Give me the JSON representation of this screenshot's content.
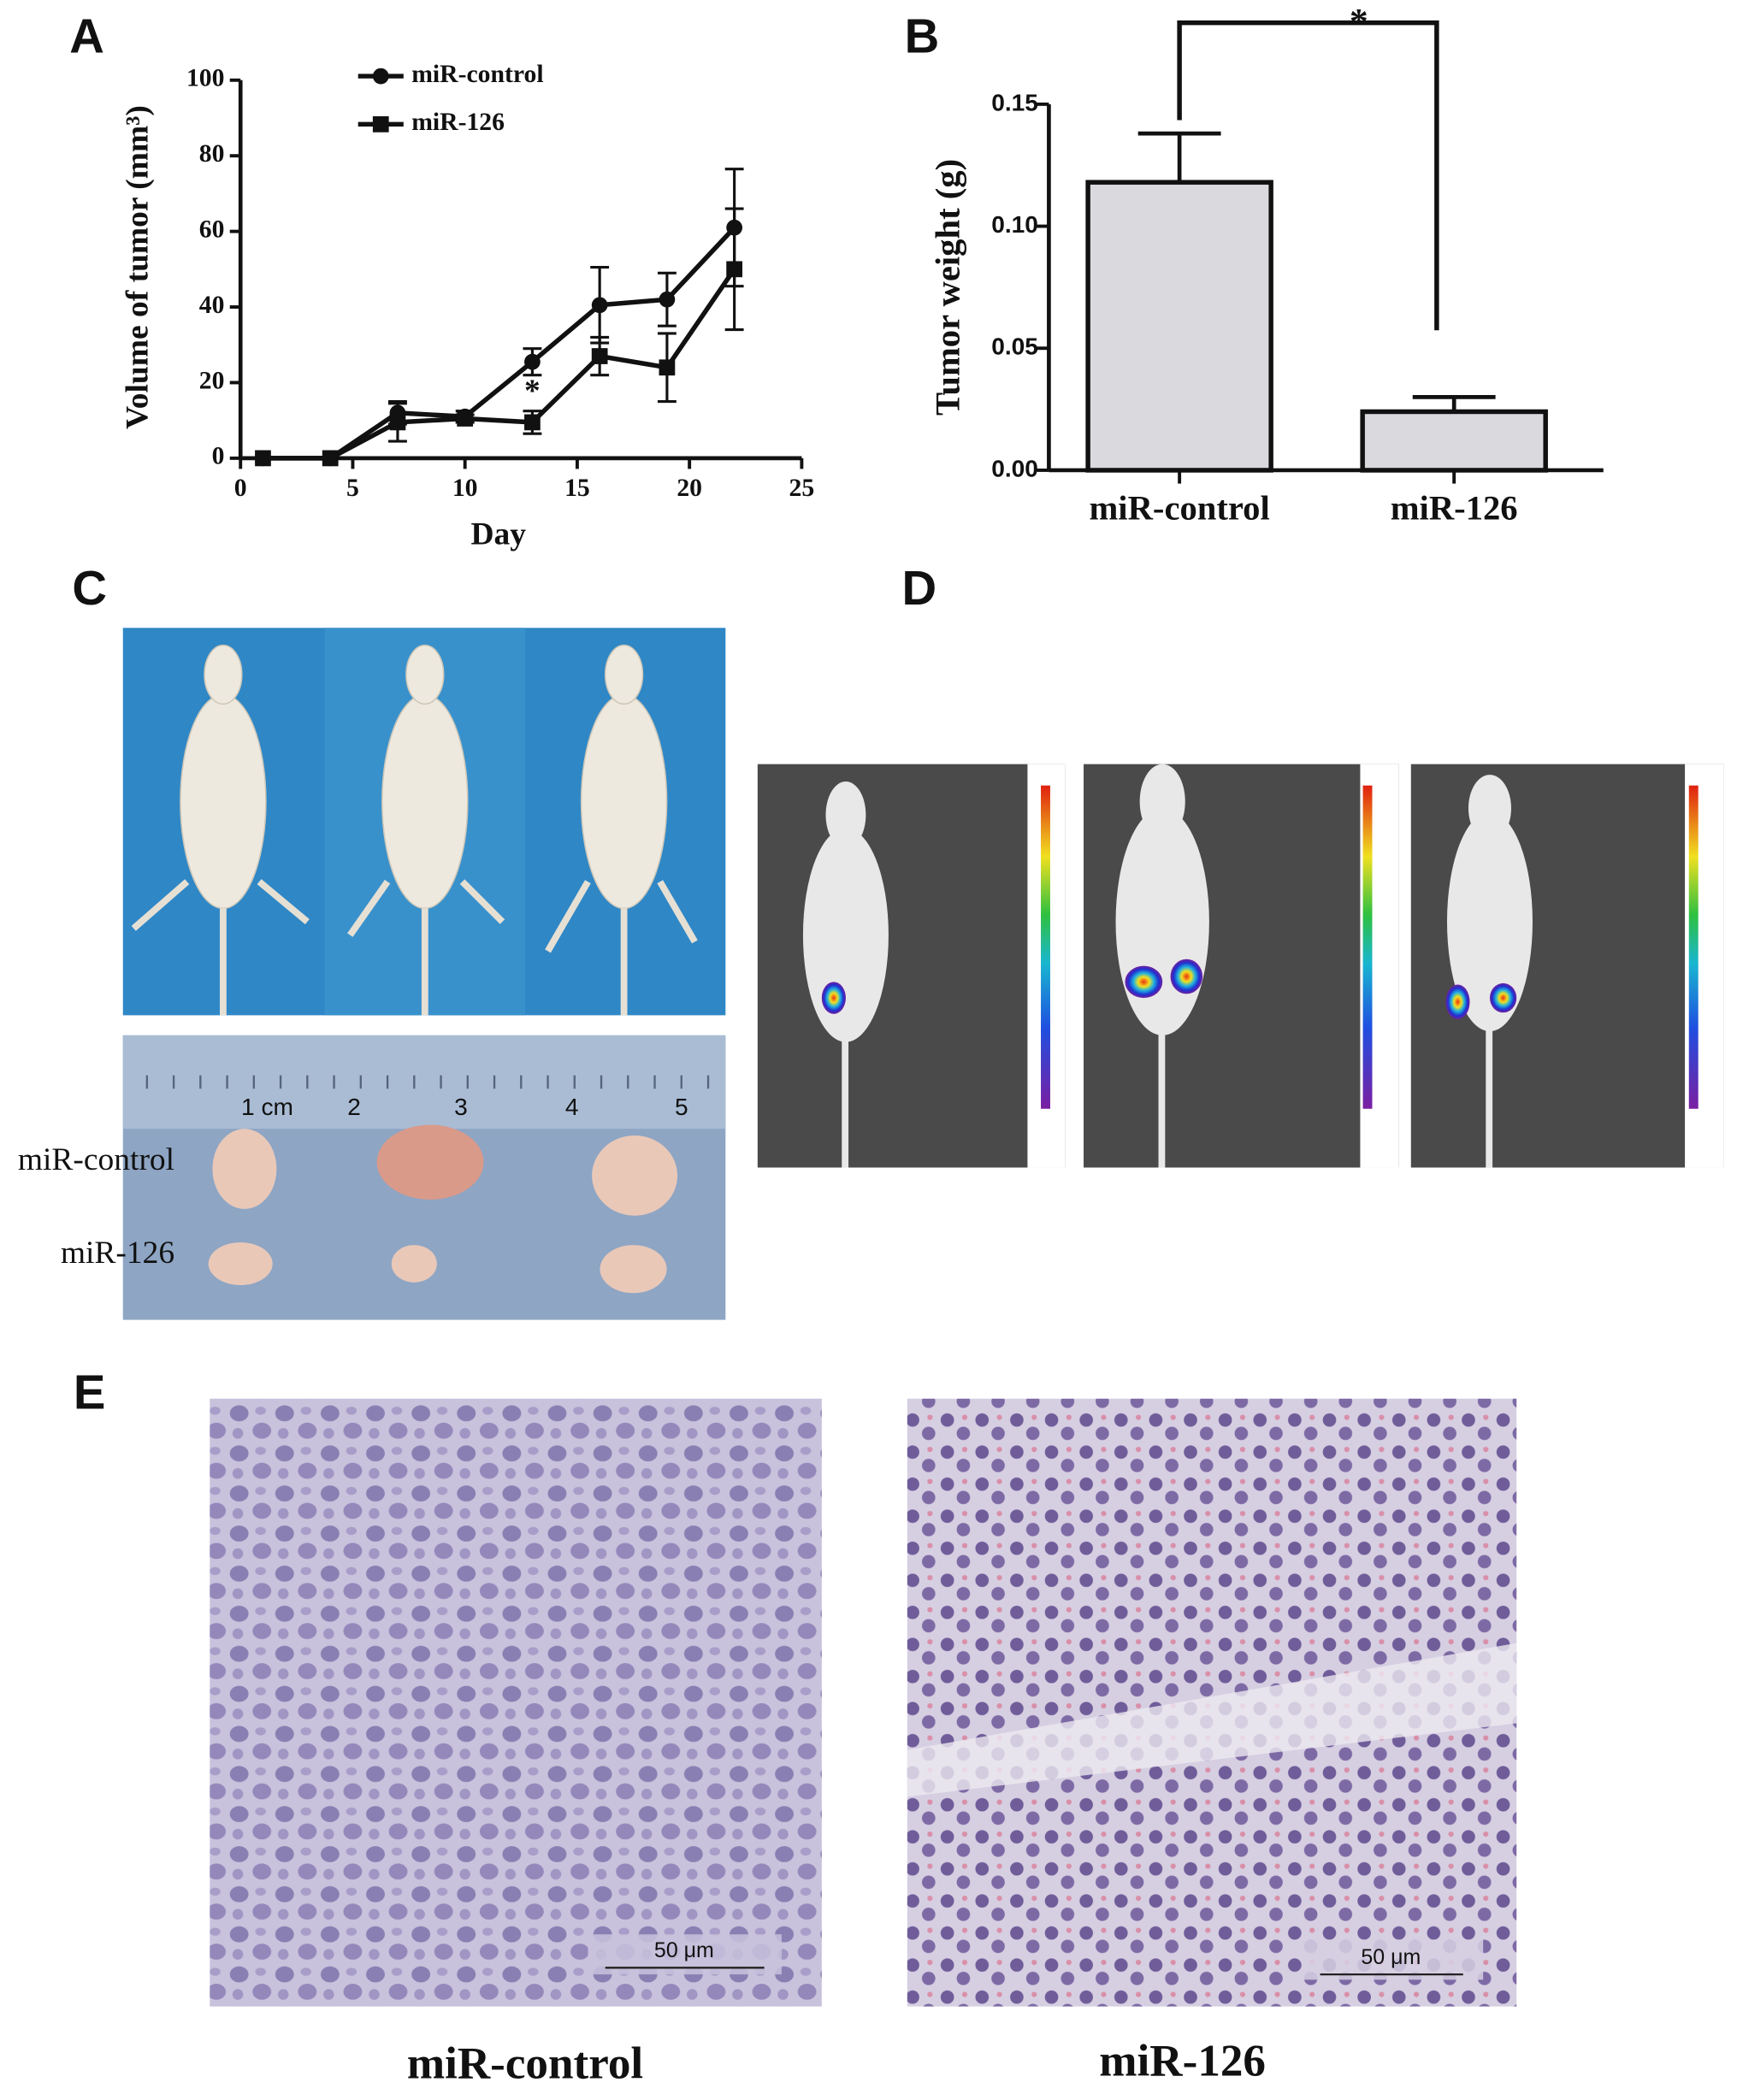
{
  "panel_labels": [
    "A",
    "B",
    "C",
    "D",
    "E"
  ],
  "chart_data": [
    {
      "type": "line",
      "x_label": "Day",
      "y_label": "Volume of tumor (mm³)",
      "x": [
        1,
        4,
        7,
        10,
        13,
        16,
        19,
        22
      ],
      "series": [
        {
          "name": "miR-control",
          "color": "#111111",
          "marker": "circle",
          "values": [
            0,
            0,
            12,
            11,
            25.5,
            40.5,
            42,
            61
          ],
          "errors": [
            0,
            0,
            3,
            1.5,
            3.5,
            10,
            7,
            15.5
          ]
        },
        {
          "name": "miR-126",
          "color": "#111111",
          "marker": "square",
          "values": [
            0,
            0,
            9.5,
            10.5,
            9.5,
            27,
            24,
            50
          ],
          "errors": [
            0,
            0,
            5,
            1,
            3,
            5,
            9,
            16
          ]
        }
      ],
      "annotations": [
        {
          "text": "*",
          "x": 13
        }
      ],
      "xlim": [
        0,
        25
      ],
      "xticks": [
        0,
        5,
        10,
        15,
        20,
        25
      ],
      "ylim": [
        0,
        100
      ],
      "yticks": [
        0,
        20,
        40,
        60,
        80,
        100
      ]
    },
    {
      "type": "bar",
      "y_label": "Tumor weight (g)",
      "categories": [
        "miR-control",
        "miR-126"
      ],
      "values": [
        0.118,
        0.024
      ],
      "errors": [
        0.02,
        0.006
      ],
      "color": "#d9d9de",
      "significance": "*",
      "ylim": [
        0,
        0.15
      ],
      "yticks": [
        {
          "value": 0,
          "label": "0.00"
        },
        {
          "value": 0.05,
          "label": "0.05"
        },
        {
          "value": 0.1,
          "label": "0.10"
        },
        {
          "value": 0.15,
          "label": "0.15"
        }
      ]
    }
  ],
  "panel_c": {
    "ruler": [
      "1 cm",
      "2",
      "3",
      "4",
      "5"
    ],
    "row_labels": [
      "miR-control",
      "miR-126"
    ]
  },
  "panel_e": {
    "scale_bars": [
      "50 μm",
      "50 μm"
    ],
    "captions": [
      "miR-control",
      "miR-126"
    ]
  }
}
